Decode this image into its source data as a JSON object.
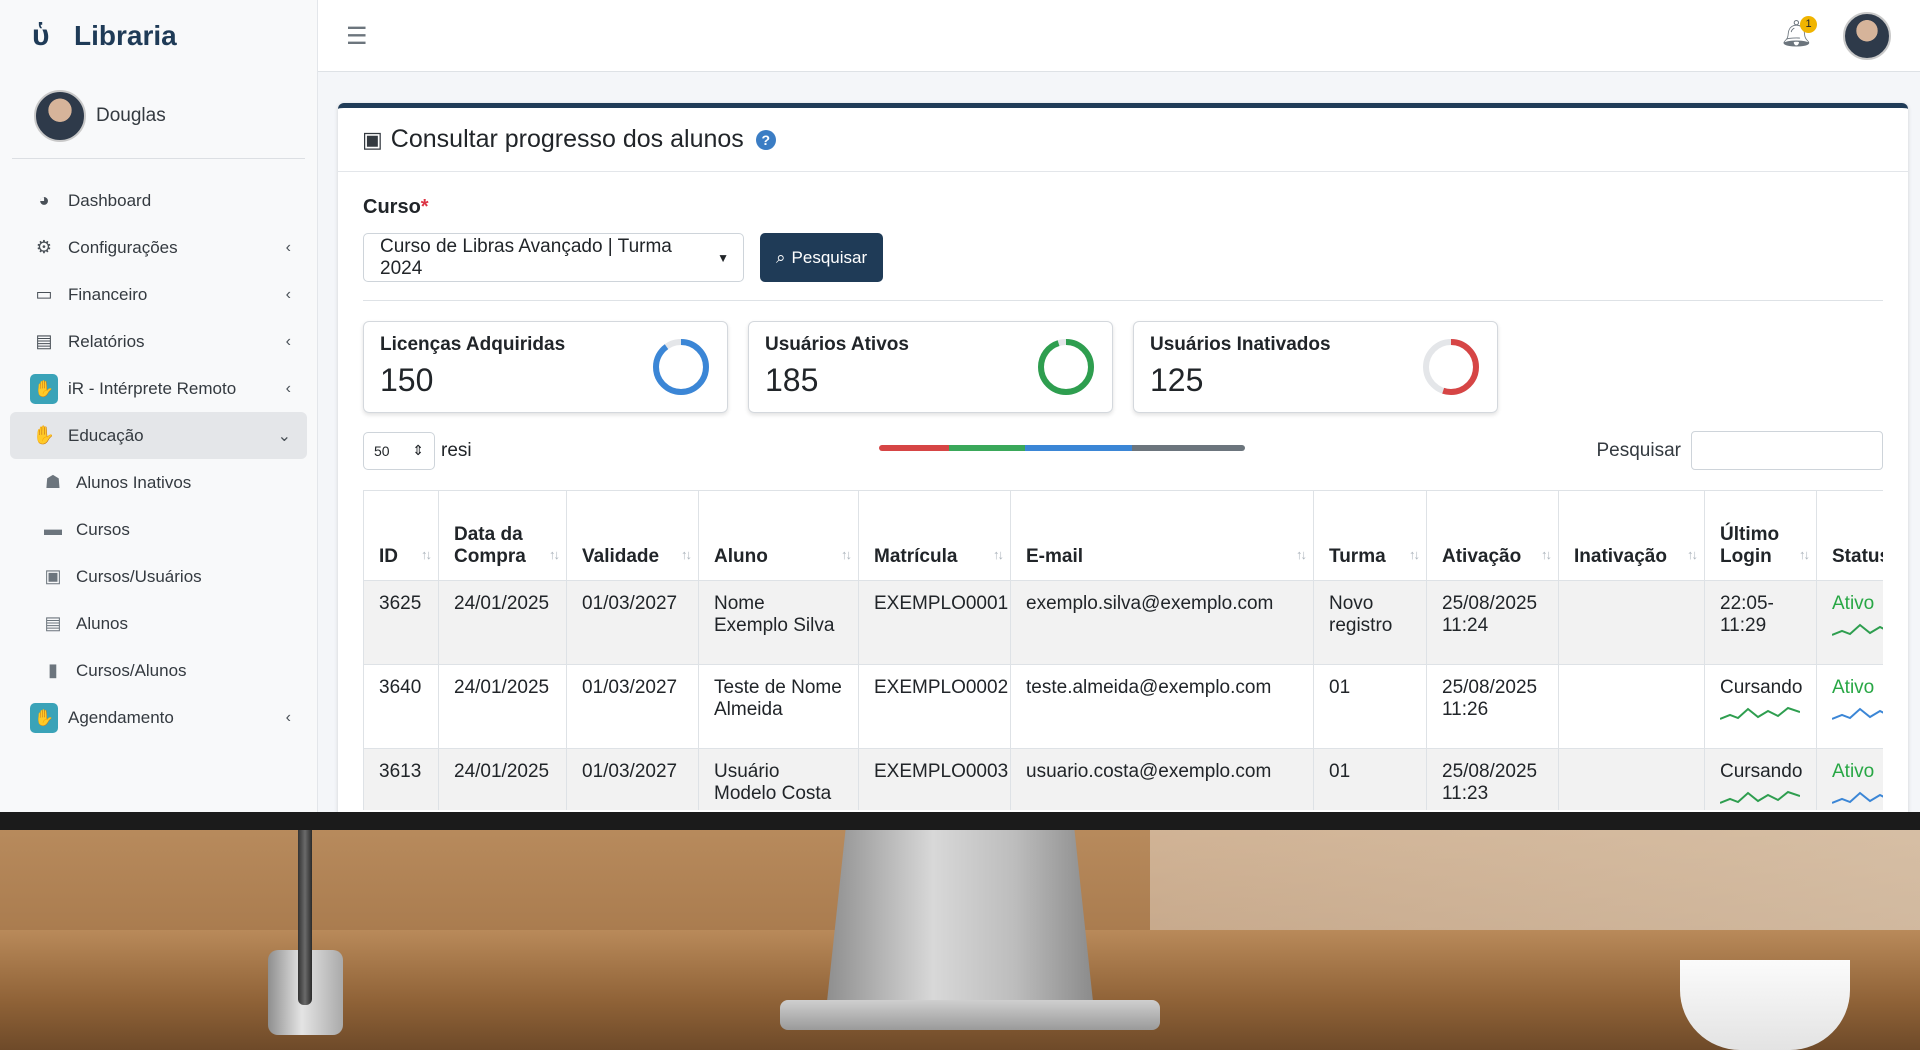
{
  "brand": {
    "name": "Libraria"
  },
  "sidebar": {
    "user": "Douglas",
    "items": [
      {
        "label": "Dashboard",
        "icon": "dashboard-icon",
        "chevron": ""
      },
      {
        "label": "Configurações",
        "icon": "users-cog-icon",
        "chevron": "‹"
      },
      {
        "label": "Financeiro",
        "icon": "credit-card-icon",
        "chevron": "‹"
      },
      {
        "label": "Relatórios",
        "icon": "file-icon",
        "chevron": "‹"
      },
      {
        "label": "iR - Intérprete Remoto",
        "icon": "sign-language-icon",
        "chevron": "‹"
      },
      {
        "label": "Educação",
        "icon": "sign-language-icon",
        "chevron": "⌄"
      }
    ],
    "sub_items": [
      {
        "label": "Alunos Inativos",
        "icon": "user-graduate-icon"
      },
      {
        "label": "Cursos",
        "icon": "id-card-icon"
      },
      {
        "label": "Cursos/Usuários",
        "icon": "address-card-icon"
      },
      {
        "label": "Alunos",
        "icon": "list-card-icon"
      },
      {
        "label": "Cursos/Alunos",
        "icon": "badge-icon"
      }
    ],
    "after_items": [
      {
        "label": "Agendamento",
        "icon": "sign-language-icon",
        "chevron": "‹"
      }
    ]
  },
  "topbar": {
    "notifications": "1"
  },
  "card": {
    "title": "Consultar progresso dos alunos",
    "course_label": "Curso",
    "required_mark": "*",
    "course_selected": "Curso de Libras Avançado | Turma 2024",
    "search_button": "Pesquisar"
  },
  "stats": [
    {
      "label": "Licenças Adquiridas",
      "value": "150",
      "fraction": 0.9,
      "color": "#3b86d6"
    },
    {
      "label": "Usuários Ativos",
      "value": "185",
      "fraction": 0.95,
      "color": "#2e9e4f"
    },
    {
      "label": "Usuários Inativados",
      "value": "125",
      "fraction": 0.55,
      "color": "#d64545"
    }
  ],
  "progress_strip": [
    {
      "fraction": 0.19,
      "color": "#d64545"
    },
    {
      "fraction": 0.21,
      "color": "#3aa85a"
    },
    {
      "fraction": 0.29,
      "color": "#3b86d6"
    },
    {
      "fraction": 0.31,
      "color": "#6c757d"
    }
  ],
  "table_controls": {
    "length": "50",
    "length_suffix": "resi",
    "filter_label": "Pesquisar"
  },
  "table": {
    "columns": [
      "ID",
      "Data da Compra",
      "Validade",
      "Aluno",
      "Matrícula",
      "E-mail",
      "Turma",
      "Ativação",
      "Inativação",
      "Último Login",
      "Status"
    ],
    "rows": [
      [
        "3625",
        "24/01/2025",
        "01/03/2027",
        "Nome Exemplo Silva",
        "EXEMPLO0001",
        "exemplo.silva@exemplo.com",
        "Novo registro",
        "25/08/2025 11:24",
        "",
        "22:05-11:29",
        "Ativo"
      ],
      [
        "3640",
        "24/01/2025",
        "01/03/2027",
        "Teste de Nome Almeida",
        "EXEMPLO0002",
        "teste.almeida@exemplo.com",
        "01",
        "25/08/2025 11:26",
        "",
        "Cursando",
        "Ativo"
      ],
      [
        "3613",
        "24/01/2025",
        "01/03/2027",
        "Usuário Modelo Costa",
        "EXEMPLO0003",
        "usuario.costa@exemplo.com",
        "01",
        "25/08/2025 11:23",
        "",
        "Cursando",
        "Ativo"
      ]
    ]
  }
}
